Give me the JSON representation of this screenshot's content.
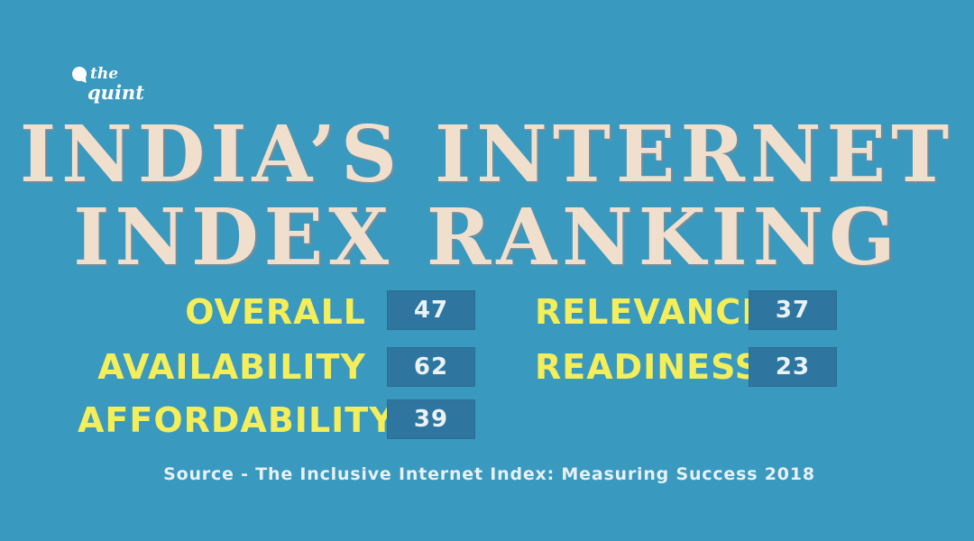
{
  "logo": {
    "the": "the",
    "quint": "quint"
  },
  "title": {
    "line1": "INDIA’S INTERNET",
    "line2": "INDEX RANKING"
  },
  "rankings": {
    "overall": {
      "label": "OVERALL",
      "value": "47"
    },
    "availability": {
      "label": "AVAILABILITY",
      "value": "62"
    },
    "affordability": {
      "label": "AFFORDABILITY",
      "value": "39"
    },
    "relevance": {
      "label": "RELEVANCE",
      "value": "37"
    },
    "readiness": {
      "label": "READINESS",
      "value": "23"
    }
  },
  "source": "Source - The Inclusive Internet Index: Measuring Success 2018",
  "colors": {
    "background": "#3a99bf",
    "title": "#f1dfcd",
    "label": "#f3ee5a",
    "value_box": "#2e76a0"
  }
}
